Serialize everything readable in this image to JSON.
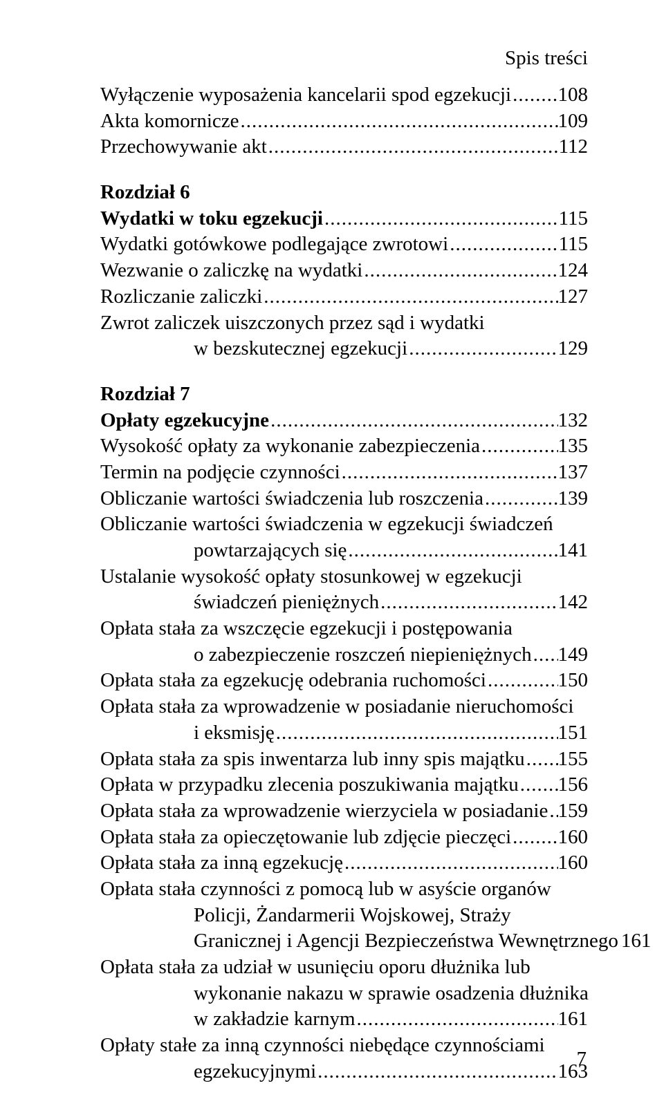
{
  "header": "Spis treści",
  "pageNumber": "7",
  "entries": [
    {
      "type": "item",
      "lines": [
        "Wyłączenie wyposażenia kancelarii spod egzekucji"
      ],
      "page": "108"
    },
    {
      "type": "item",
      "lines": [
        "Akta komornicze"
      ],
      "page": "109"
    },
    {
      "type": "item",
      "lines": [
        "Przechowywanie akt"
      ],
      "page": "112"
    },
    {
      "type": "gap"
    },
    {
      "type": "chapter",
      "lines": [
        "Rozdział 6"
      ]
    },
    {
      "type": "heading",
      "lines": [
        "Wydatki w toku egzekucji"
      ],
      "page": "115"
    },
    {
      "type": "item",
      "lines": [
        "Wydatki gotówkowe podlegające zwrotowi"
      ],
      "page": "115"
    },
    {
      "type": "item",
      "lines": [
        "Wezwanie o zaliczkę na wydatki"
      ],
      "page": "124"
    },
    {
      "type": "item",
      "lines": [
        "Rozliczanie zaliczki"
      ],
      "page": "127"
    },
    {
      "type": "item",
      "lines": [
        "Zwrot zaliczek uiszczonych przez sąd i wydatki",
        "w bezskutecznej egzekucji"
      ],
      "page": "129"
    },
    {
      "type": "gap"
    },
    {
      "type": "chapter",
      "lines": [
        "Rozdział 7"
      ]
    },
    {
      "type": "heading",
      "lines": [
        "Opłaty egzekucyjne"
      ],
      "page": "132"
    },
    {
      "type": "item",
      "lines": [
        "Wysokość opłaty za wykonanie zabezpieczenia"
      ],
      "page": "135"
    },
    {
      "type": "item",
      "lines": [
        "Termin na podjęcie czynności"
      ],
      "page": "137"
    },
    {
      "type": "item",
      "lines": [
        "Obliczanie wartości świadczenia lub roszczenia"
      ],
      "page": "139"
    },
    {
      "type": "item",
      "lines": [
        "Obliczanie wartości świadczenia w egzekucji świadczeń",
        "powtarzających się"
      ],
      "page": "141"
    },
    {
      "type": "item",
      "lines": [
        "Ustalanie wysokość opłaty stosunkowej w egzekucji",
        "świadczeń pieniężnych"
      ],
      "page": "142"
    },
    {
      "type": "item",
      "lines": [
        "Opłata stała za wszczęcie egzekucji i postępowania",
        "o zabezpieczenie roszczeń niepieniężnych"
      ],
      "page": "149"
    },
    {
      "type": "item",
      "lines": [
        "Opłata stała za egzekucję odebrania ruchomości"
      ],
      "page": "150"
    },
    {
      "type": "item",
      "lines": [
        "Opłata stała za wprowadzenie w posiadanie nieruchomości",
        "i eksmisję"
      ],
      "page": "151"
    },
    {
      "type": "item",
      "lines": [
        "Opłata stała za spis inwentarza lub inny spis majątku"
      ],
      "page": "155"
    },
    {
      "type": "item",
      "lines": [
        "Opłata w przypadku zlecenia poszukiwania majątku"
      ],
      "page": "156"
    },
    {
      "type": "item",
      "lines": [
        "Opłata stała za wprowadzenie wierzyciela w posiadanie"
      ],
      "page": "159"
    },
    {
      "type": "item",
      "lines": [
        "Opłata stała za opieczętowanie lub zdjęcie pieczęci"
      ],
      "page": "160"
    },
    {
      "type": "item",
      "lines": [
        "Opłata stała za inną egzekucję"
      ],
      "page": "160"
    },
    {
      "type": "item",
      "lines": [
        "Opłata stała czynności z pomocą lub w asyście organów",
        "Policji, Żandarmerii Wojskowej, Straży",
        "Granicznej i Agencji Bezpieczeństwa Wewnętrznego"
      ],
      "page": "161"
    },
    {
      "type": "item",
      "lines": [
        "Opłata stała za udział w usunięciu oporu dłużnika  lub",
        "wykonanie nakazu w sprawie osadzenia dłużnika",
        "w zakładzie karnym"
      ],
      "page": "161"
    },
    {
      "type": "item",
      "lines": [
        "Opłaty stałe za inną czynności niebędące  czynnościami",
        "egzekucyjnymi"
      ],
      "page": "163"
    }
  ]
}
